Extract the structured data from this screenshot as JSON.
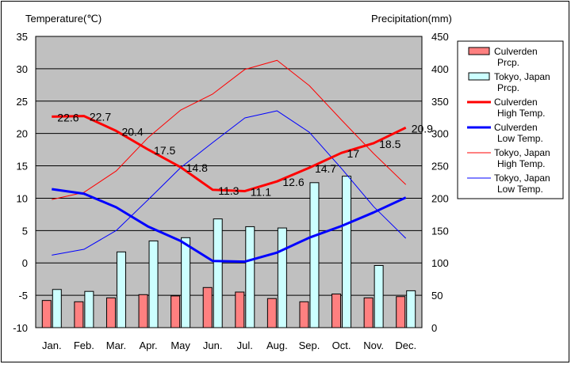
{
  "chart_data": {
    "type": "bar-line-combo",
    "categories": [
      "Jan.",
      "Feb.",
      "Mar.",
      "Apr.",
      "May",
      "Jun.",
      "Jul.",
      "Aug.",
      "Sep.",
      "Oct.",
      "Nov.",
      "Dec."
    ],
    "y_left": {
      "label": "Temperature(℃)",
      "min": -10,
      "max": 35,
      "step": 5,
      "ticks": [
        "35",
        "30",
        "25",
        "20",
        "15",
        "10",
        "5",
        "0",
        "-5",
        "-10"
      ]
    },
    "y_right": {
      "label": "Precipitation(mm)",
      "min": 0,
      "max": 450,
      "step": 50,
      "ticks": [
        "450",
        "400",
        "350",
        "300",
        "250",
        "200",
        "150",
        "100",
        "50",
        "0"
      ]
    },
    "bar_series": [
      {
        "name": "Culverden\nPrcp.",
        "color": "#ff8080",
        "axis": "right",
        "values": [
          42,
          40,
          46,
          51,
          49,
          62,
          55,
          45,
          40,
          52,
          46,
          48
        ]
      },
      {
        "name": "Tokyo, Japan\nPrcp.",
        "color": "#ccffff",
        "axis": "right",
        "values": [
          59,
          56,
          117,
          134,
          139,
          168,
          156,
          154,
          224,
          234,
          96,
          57
        ]
      }
    ],
    "line_series": [
      {
        "name": "Culverden\nHigh Temp.",
        "color": "#ff0000",
        "width": 3,
        "axis": "left",
        "values": [
          22.6,
          22.7,
          20.4,
          17.5,
          14.8,
          11.3,
          11.1,
          12.6,
          14.7,
          17,
          18.5,
          20.9
        ],
        "labels": [
          "22.6",
          "22.7",
          "20.4",
          "17.5",
          "14.8",
          "11.3",
          "11.1",
          "12.6",
          "14.7",
          "17",
          "18.5",
          "20.9"
        ]
      },
      {
        "name": "Culverden\nLow Temp.",
        "color": "#0000ff",
        "width": 3,
        "axis": "left",
        "values": [
          11.4,
          10.7,
          8.6,
          5.6,
          3.4,
          0.3,
          0.2,
          1.6,
          3.9,
          5.7,
          7.8,
          10.1
        ]
      },
      {
        "name": "Tokyo, Japan\nHigh Temp.",
        "color": "#ff0000",
        "width": 1,
        "axis": "left",
        "values": [
          9.8,
          10.9,
          14.2,
          19.4,
          23.6,
          26.1,
          29.9,
          31.3,
          27.4,
          22.1,
          16.9,
          12.1
        ]
      },
      {
        "name": "Tokyo, Japan\nLow Temp.",
        "color": "#0000ff",
        "width": 1,
        "axis": "left",
        "values": [
          1.2,
          2.1,
          5.0,
          9.8,
          14.7,
          18.6,
          22.4,
          23.5,
          20.2,
          14.6,
          8.7,
          3.8
        ]
      }
    ],
    "grid": true,
    "plot_background": "#c0c0c0",
    "legend": "right"
  }
}
